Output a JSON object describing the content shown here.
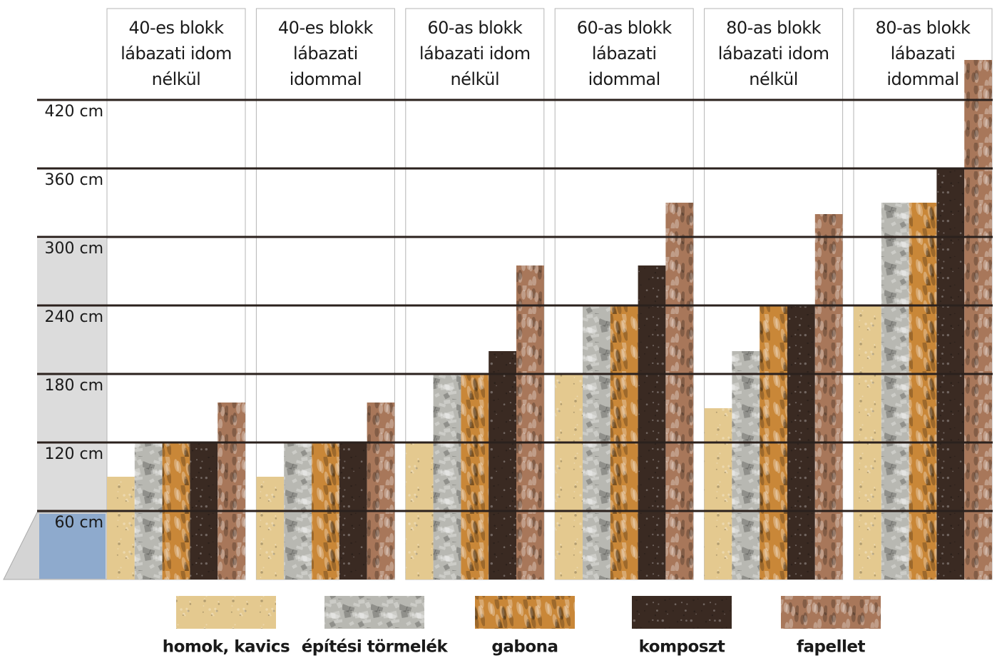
{
  "chart_data": {
    "type": "bar",
    "categories": [
      [
        "40-es blokk",
        "lábazati idom",
        "nélkül"
      ],
      [
        "40-es blokk",
        "lábazati",
        "idommal"
      ],
      [
        "60-as blokk",
        "lábazati idom",
        "nélkül"
      ],
      [
        "60-as blokk",
        "lábazati",
        "idommal"
      ],
      [
        "80-as blokk",
        "lábazati idom",
        "nélkül"
      ],
      [
        "80-as blokk",
        "lábazati",
        "idommal"
      ]
    ],
    "series": [
      {
        "name": "homok, kavics",
        "color": "#e4c98f",
        "values": [
          90,
          90,
          120,
          180,
          150,
          240
        ]
      },
      {
        "name": "építési törmelék",
        "color": "#b8b8b2",
        "values": [
          120,
          120,
          180,
          240,
          200,
          330
        ]
      },
      {
        "name": "gabona",
        "color": "#c98738",
        "values": [
          120,
          120,
          180,
          240,
          240,
          330
        ]
      },
      {
        "name": "komposzt",
        "color": "#3a2a22",
        "values": [
          120,
          120,
          200,
          275,
          240,
          360
        ]
      },
      {
        "name": "fapellet",
        "color": "#a8775a",
        "values": [
          155,
          155,
          275,
          330,
          320,
          455
        ]
      }
    ],
    "ylim": [
      0,
      480
    ],
    "yticks": [
      {
        "value": 60,
        "label": "60 cm"
      },
      {
        "value": 120,
        "label": "120 cm"
      },
      {
        "value": 180,
        "label": "180 cm"
      },
      {
        "value": 240,
        "label": "240 cm"
      },
      {
        "value": 300,
        "label": "300 cm"
      },
      {
        "value": 360,
        "label": "360 cm"
      },
      {
        "value": 420,
        "label": "420 cm"
      }
    ],
    "grid": true
  }
}
